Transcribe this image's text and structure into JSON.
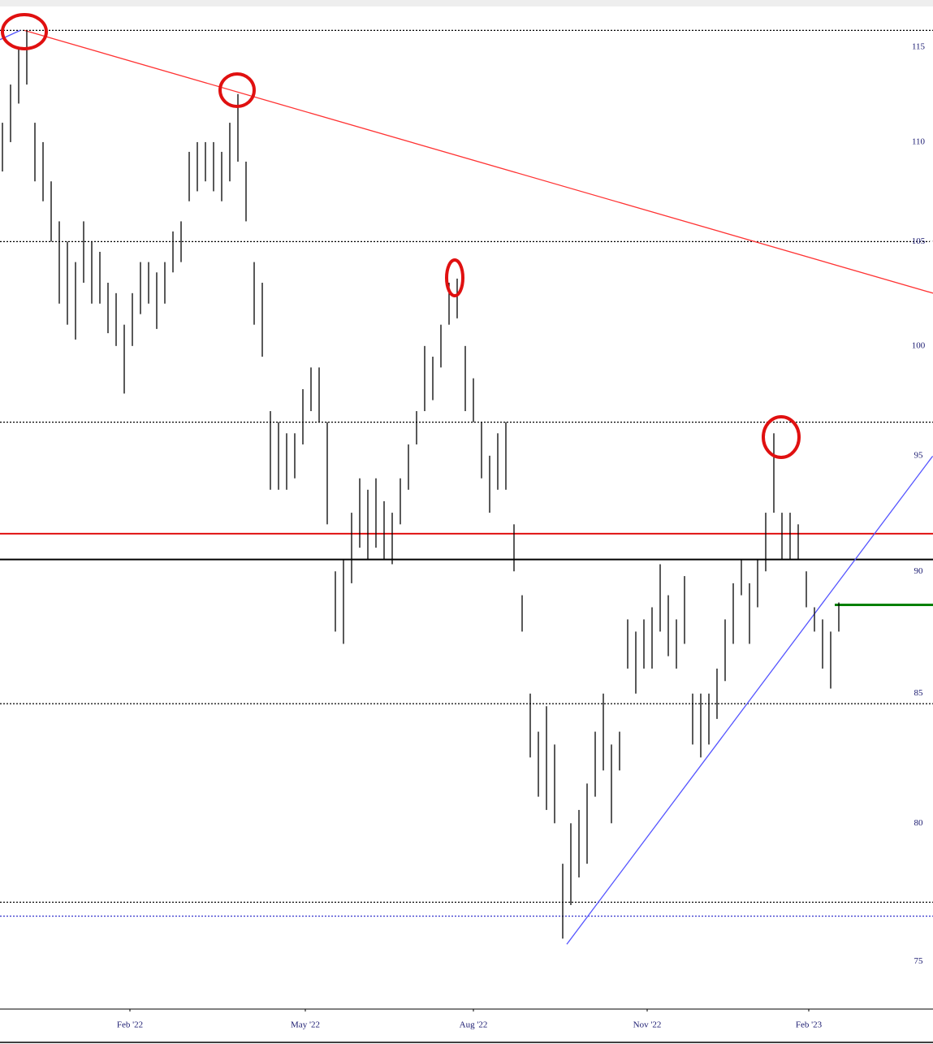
{
  "chart_data": {
    "type": "hlbar",
    "scale": "log",
    "color": "#000000",
    "xlim": [
      -0.3,
      114.6
    ],
    "ylim": [
      73.4,
      117.2
    ],
    "yticks": [
      75,
      80,
      85,
      90,
      95,
      100,
      105,
      110,
      115
    ],
    "xticks": [
      {
        "value": 15.7,
        "label": "Feb '22"
      },
      {
        "value": 37.3,
        "label": "May '22"
      },
      {
        "value": 58,
        "label": "Aug '22"
      },
      {
        "value": 79.4,
        "label": "Nov '22"
      },
      {
        "value": 99.3,
        "label": "Feb '23"
      }
    ],
    "high": [
      111,
      113,
      115,
      115.9,
      111,
      110,
      108,
      106,
      105,
      104,
      106,
      105,
      104.5,
      103,
      102.5,
      101,
      102.5,
      104,
      104,
      103.5,
      104,
      105.5,
      106,
      109.5,
      110,
      110,
      110,
      109.5,
      111,
      112.5,
      109,
      104,
      103,
      97,
      96.5,
      96,
      96,
      98,
      99,
      99,
      96.5,
      90,
      90.5,
      92.5,
      94,
      93.5,
      94,
      93,
      92.5,
      94,
      95.5,
      97,
      100,
      99.5,
      101,
      103,
      103.2,
      100,
      98.5,
      96.5,
      95,
      96,
      96.5,
      92,
      89,
      85,
      83.5,
      84.5,
      83,
      78.5,
      80,
      80.5,
      81.5,
      83.5,
      85,
      83,
      83.5,
      88,
      87.5,
      88,
      88.5,
      90.3,
      89,
      88,
      89.8,
      85,
      85,
      85,
      86,
      88,
      89.5,
      90.5,
      89.5,
      90.5,
      92.5,
      96,
      92.5,
      92.5,
      92,
      90,
      88.5,
      88,
      87.5,
      88.7
    ],
    "low": [
      108.5,
      110,
      112,
      113,
      108,
      107,
      105,
      102,
      101,
      100.3,
      103,
      102,
      102,
      100.6,
      100,
      97.8,
      100,
      101.5,
      102,
      100.8,
      102,
      103.5,
      104,
      107,
      107.5,
      108,
      107.5,
      107,
      108,
      109,
      106,
      101,
      99.5,
      93.5,
      93.5,
      93.5,
      94,
      95.5,
      97,
      96.5,
      92,
      87.5,
      87,
      89.5,
      91,
      90.5,
      91,
      90.5,
      90.3,
      92,
      93.5,
      95.5,
      97,
      97.5,
      99,
      101,
      101.3,
      97,
      96.5,
      94,
      92.5,
      93.5,
      93.5,
      90,
      87.5,
      82.5,
      81,
      80.5,
      80,
      75.8,
      77,
      78,
      78.5,
      81,
      82,
      80,
      82,
      86,
      85,
      86,
      86,
      87.5,
      86.5,
      86,
      87,
      83,
      82.5,
      83,
      84,
      85.5,
      87,
      89,
      87,
      88.5,
      90,
      92.5,
      90.5,
      90.5,
      90.5,
      88.5,
      87.5,
      86,
      85.2,
      87.5
    ],
    "levels": [
      {
        "value": 115.9,
        "color": "#000000",
        "style": "dotted"
      },
      {
        "value": 105,
        "color": "#000000",
        "style": "dotted"
      },
      {
        "value": 96.5,
        "color": "#000000",
        "style": "dotted"
      },
      {
        "value": 84.6,
        "color": "#000000",
        "style": "dotted"
      },
      {
        "value": 77.1,
        "color": "#000000",
        "style": "dotted"
      },
      {
        "value": 76.6,
        "color": "#3333cc",
        "style": "dotted"
      },
      {
        "value": 91.6,
        "color": "#e01010",
        "style": "solid"
      },
      {
        "value": 90.5,
        "color": "#000000",
        "style": "solid"
      },
      {
        "value": 88.6,
        "color": "#008000",
        "style": "solid",
        "from": 102.5
      }
    ],
    "trendlines": [
      {
        "x": [
          2.7,
          114.6
        ],
        "y": [
          115.9,
          102.5
        ],
        "color": "#ff3333"
      },
      {
        "x": [
          69.5,
          114.6
        ],
        "y": [
          75.6,
          95
        ],
        "color": "#5555ff"
      },
      {
        "x": [
          -0.3,
          2.2
        ],
        "y": [
          115.4,
          115.9
        ],
        "color": "#5555ff"
      }
    ]
  }
}
